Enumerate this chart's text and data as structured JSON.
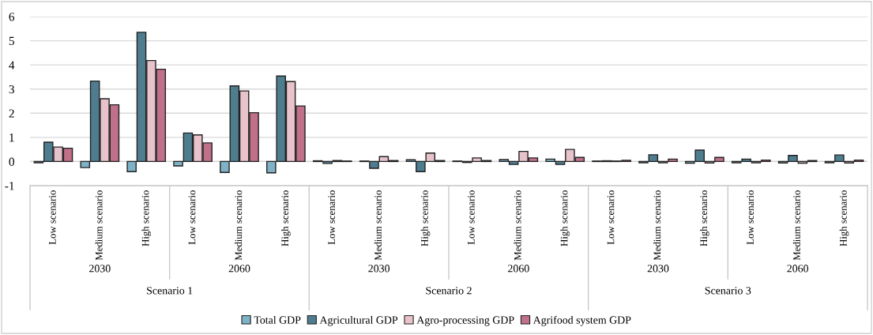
{
  "chart_data": {
    "type": "bar",
    "categories": [
      "Low scenario",
      "Medium scenario",
      "High scenario",
      "Low scenario",
      "Medium scenario",
      "High scenario",
      "Low scenario",
      "Medium scenario",
      "High scenario",
      "Low scenario",
      "Medium scenario",
      "High scenario",
      "Low scenario",
      "Medium scenario",
      "High scenario",
      "Low scenario",
      "Medium scenario",
      "High scenario"
    ],
    "series": [
      {
        "name": "Total GDP",
        "color": "#7fb2c6",
        "values": [
          -0.05,
          -0.25,
          -0.42,
          -0.18,
          -0.45,
          -0.47,
          0.03,
          0.02,
          0.07,
          0.02,
          0.08,
          0.1,
          0.02,
          -0.05,
          -0.07,
          -0.05,
          -0.06,
          -0.05
        ]
      },
      {
        "name": "Agricultural GDP",
        "color": "#4f7d90",
        "values": [
          0.8,
          3.33,
          5.35,
          1.18,
          3.13,
          3.54,
          -0.08,
          -0.28,
          -0.42,
          -0.04,
          -0.12,
          -0.12,
          0.03,
          0.28,
          0.47,
          0.1,
          0.25,
          0.27
        ]
      },
      {
        "name": "Agro-processing GDP",
        "color": "#e8c3cb",
        "values": [
          0.6,
          2.6,
          4.18,
          1.1,
          2.92,
          3.31,
          0.04,
          0.2,
          0.35,
          0.15,
          0.42,
          0.5,
          0.02,
          -0.05,
          -0.06,
          -0.05,
          -0.07,
          -0.06
        ]
      },
      {
        "name": "Agrifood system GDP",
        "color": "#c07088",
        "values": [
          0.55,
          2.35,
          3.82,
          0.77,
          2.02,
          2.3,
          0.02,
          0.04,
          0.04,
          0.04,
          0.15,
          0.17,
          0.05,
          0.1,
          0.17,
          0.06,
          0.04,
          0.06
        ]
      }
    ],
    "annotations": [
      "2030",
      "2060",
      "2030",
      "2060",
      "2030",
      "2060",
      "Scenario 1",
      "Scenario 2",
      "Scenario 3"
    ],
    "ylim": [
      -1,
      6
    ],
    "yticks": [
      -1,
      0,
      1,
      2,
      3,
      4,
      5,
      6
    ],
    "grid": "y",
    "legend": "bottom"
  }
}
